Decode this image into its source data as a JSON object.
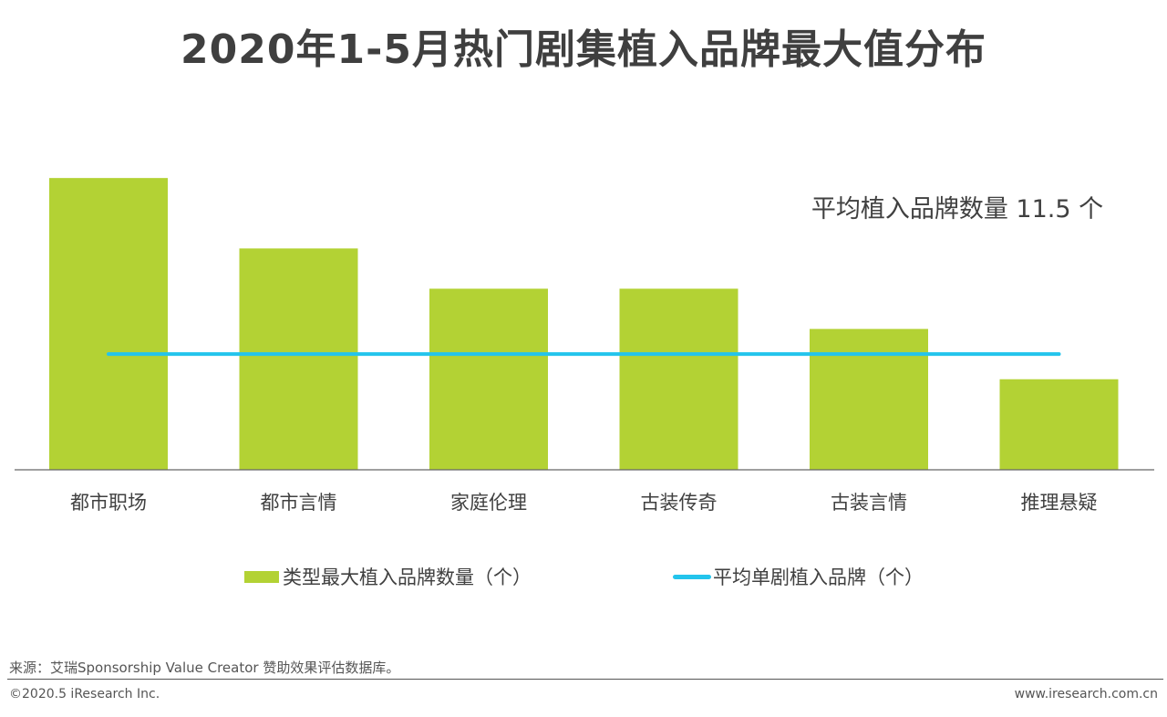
{
  "chart_data": {
    "type": "bar",
    "title": "2020年1-5月热门剧集植入品牌最大值分布",
    "categories": [
      "都市职场",
      "都市言情",
      "家庭伦理",
      "古装传奇",
      "古装言情",
      "推理悬疑"
    ],
    "series": [
      {
        "name": "类型最大植入品牌数量（个）",
        "kind": "bar",
        "values": [
          29,
          22,
          18,
          18,
          14,
          9
        ],
        "color": "#b3d234"
      },
      {
        "name": "平均单剧植入品牌（个）",
        "kind": "line",
        "values": [
          11.5,
          11.5,
          11.5,
          11.5,
          11.5,
          11.5
        ],
        "color": "#23c4ec"
      }
    ],
    "annotation": "平均植入品牌数量 11.5 个",
    "ylim": [
      0,
      34
    ],
    "grid": false,
    "legend_position": "bottom"
  },
  "footer": {
    "source": "来源：艾瑞Sponsorship Value Creator 赞助效果评估数据库。",
    "copyright": "©2020.5 iResearch Inc.",
    "website": "www.iresearch.com.cn"
  },
  "colors": {
    "axis": "#666666",
    "text": "#404040"
  }
}
